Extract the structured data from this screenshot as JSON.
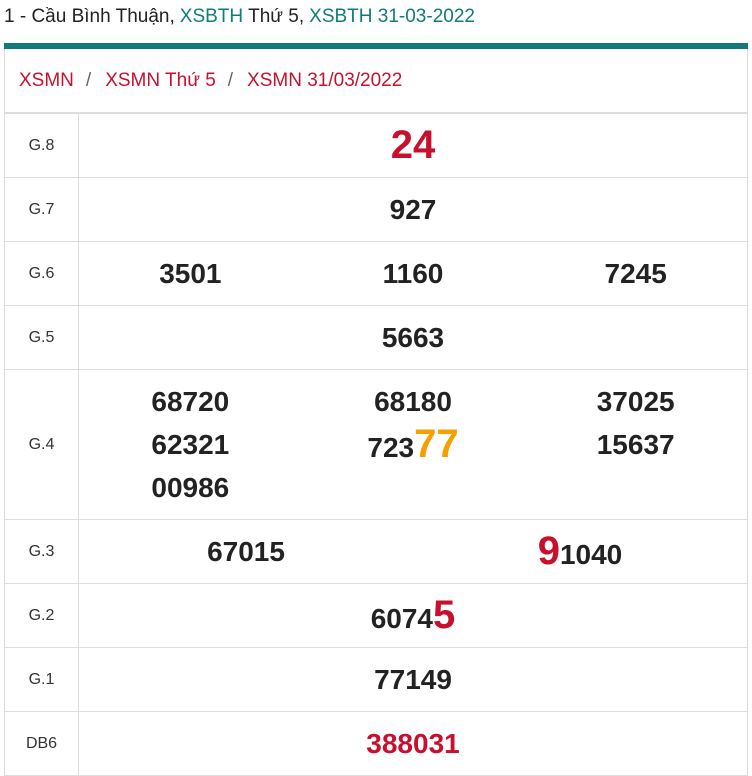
{
  "header": [
    {
      "text": "1 - Cầu Bình Thuận,",
      "color": "#222222"
    },
    {
      "text": "XSBTH",
      "color": "#0e7c7b"
    },
    {
      "text": "Thứ 5,",
      "color": "#222222"
    },
    {
      "text": "XSBTH 31-03-2022",
      "color": "#0e7c7b"
    }
  ],
  "breadcrumb": {
    "items": [
      "XSMN",
      "XSMN Thứ 5",
      "XSMN 31/03/2022"
    ],
    "separator": "/"
  },
  "table": {
    "rows": [
      {
        "label": "G.8",
        "columns": [
          [
            [
              {
                "text": "24",
                "color": "#c8102e",
                "big": true
              }
            ]
          ]
        ]
      },
      {
        "label": "G.7",
        "columns": [
          [
            [
              {
                "text": "927"
              }
            ]
          ]
        ]
      },
      {
        "label": "G.6",
        "columns": [
          [
            [
              {
                "text": "3501"
              }
            ]
          ],
          [
            [
              {
                "text": "1160"
              }
            ]
          ],
          [
            [
              {
                "text": "7245"
              }
            ]
          ]
        ]
      },
      {
        "label": "G.5",
        "columns": [
          [
            [
              {
                "text": "5663"
              }
            ]
          ]
        ]
      },
      {
        "label": "G.4",
        "columns": [
          [
            [
              {
                "text": "68720"
              }
            ],
            [
              {
                "text": "62321"
              }
            ],
            [
              {
                "text": "00986"
              }
            ]
          ],
          [
            [
              {
                "text": "68180"
              }
            ],
            [
              {
                "text": "723"
              },
              {
                "text": "77",
                "color": "#f5a000",
                "big": true
              }
            ]
          ],
          [
            [
              {
                "text": "37025"
              }
            ],
            [
              {
                "text": "15637"
              }
            ]
          ]
        ]
      },
      {
        "label": "G.3",
        "columns": [
          [
            [
              {
                "text": "67015"
              }
            ]
          ],
          [
            [
              {
                "text": "9",
                "color": "#c8102e",
                "big": true
              },
              {
                "text": "1040"
              }
            ]
          ]
        ]
      },
      {
        "label": "G.2",
        "columns": [
          [
            [
              {
                "text": "6074"
              },
              {
                "text": "5",
                "color": "#c8102e",
                "big": true
              }
            ]
          ]
        ]
      },
      {
        "label": "G.1",
        "columns": [
          [
            [
              {
                "text": "77149"
              }
            ]
          ]
        ]
      },
      {
        "label": "DB6",
        "columns": [
          [
            [
              {
                "text": "388031",
                "color": "#c8102e"
              }
            ]
          ]
        ]
      }
    ]
  }
}
